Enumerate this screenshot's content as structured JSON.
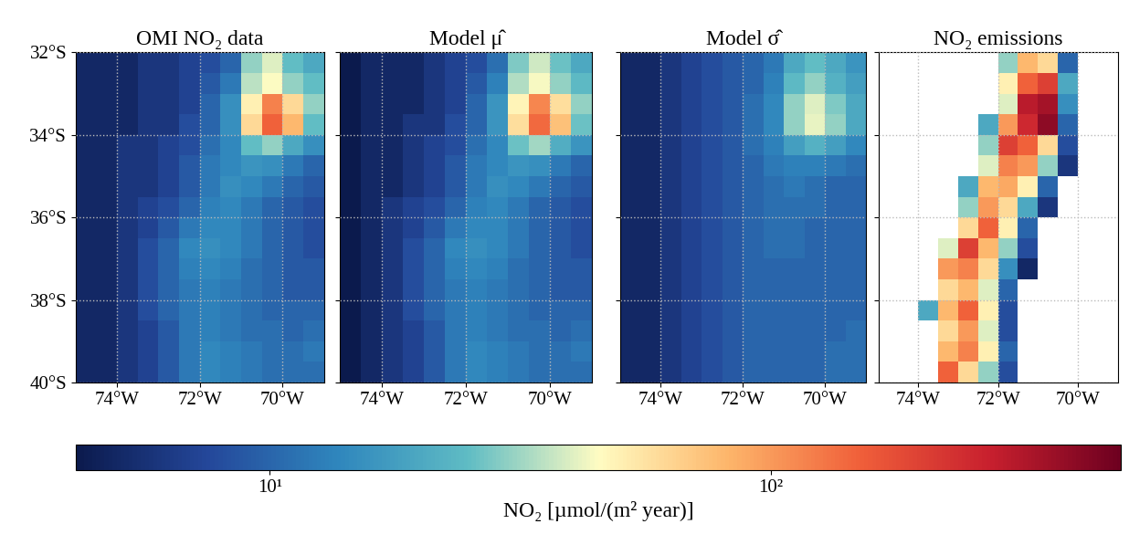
{
  "chart_data": [
    {
      "type": "heatmap",
      "title": "OMI NO₂ data",
      "x": [
        -75,
        -74.5,
        -74,
        -73.5,
        -73,
        -72.5,
        -72,
        -71.5,
        -71,
        -70.5,
        -70,
        -69.5,
        -69
      ],
      "y": [
        -32,
        -32.5,
        -33,
        -33.5,
        -34,
        -34.5,
        -35,
        -35.5,
        -36,
        -36.5,
        -37,
        -37.5,
        -38,
        -38.5,
        -39,
        -39.5,
        -40
      ],
      "cells": [
        [
          5,
          5,
          5,
          6,
          6,
          7,
          8,
          10,
          30,
          40,
          25,
          20
        ],
        [
          5,
          5,
          5,
          6,
          6,
          7,
          9,
          12,
          35,
          45,
          30,
          25
        ],
        [
          5,
          5,
          5,
          6,
          6,
          7,
          10,
          15,
          50,
          120,
          60,
          30
        ],
        [
          5,
          5,
          5,
          6,
          6,
          8,
          10,
          15,
          60,
          150,
          80,
          25
        ],
        [
          5,
          5,
          6,
          6,
          7,
          8,
          11,
          14,
          25,
          30,
          20,
          15
        ],
        [
          5,
          5,
          6,
          6,
          7,
          9,
          12,
          14,
          16,
          15,
          12,
          10
        ],
        [
          5,
          5,
          6,
          6,
          7,
          9,
          12,
          15,
          14,
          12,
          10,
          9
        ],
        [
          5,
          5,
          6,
          7,
          8,
          10,
          13,
          14,
          12,
          10,
          9,
          8
        ],
        [
          5,
          5,
          6,
          7,
          9,
          12,
          14,
          14,
          12,
          10,
          9,
          8
        ],
        [
          5,
          5,
          6,
          8,
          10,
          14,
          15,
          14,
          12,
          10,
          9,
          8
        ],
        [
          5,
          5,
          6,
          8,
          10,
          13,
          14,
          13,
          11,
          10,
          9,
          9
        ],
        [
          5,
          5,
          6,
          8,
          10,
          12,
          13,
          12,
          11,
          10,
          9,
          9
        ],
        [
          5,
          5,
          6,
          8,
          10,
          12,
          13,
          12,
          11,
          10,
          10,
          10
        ],
        [
          5,
          5,
          6,
          7,
          9,
          12,
          13,
          12,
          11,
          11,
          10,
          11
        ],
        [
          5,
          5,
          6,
          7,
          9,
          12,
          14,
          13,
          12,
          11,
          11,
          12
        ],
        [
          5,
          5,
          6,
          7,
          9,
          12,
          14,
          13,
          12,
          11,
          11,
          11
        ]
      ],
      "xlim": [
        -75,
        -69
      ],
      "ylim": [
        -40,
        -32
      ],
      "xticks": [
        {
          "value": -74,
          "label": "74°W"
        },
        {
          "value": -72,
          "label": "72°W"
        },
        {
          "value": -70,
          "label": "70°W"
        }
      ],
      "yticks": [
        {
          "value": -32,
          "label": "32°S"
        },
        {
          "value": -34,
          "label": "34°S"
        },
        {
          "value": -36,
          "label": "36°S"
        },
        {
          "value": -38,
          "label": "38°S"
        },
        {
          "value": -40,
          "label": "40°S"
        }
      ],
      "grid": true
    },
    {
      "type": "heatmap",
      "title": "Model μ̂",
      "x": [
        -75,
        -74.5,
        -74,
        -73.5,
        -73,
        -72.5,
        -72,
        -71.5,
        -71,
        -70.5,
        -70,
        -69.5,
        -69
      ],
      "y": [
        -32,
        -32.5,
        -33,
        -33.5,
        -34,
        -34.5,
        -35,
        -35.5,
        -36,
        -36.5,
        -37,
        -37.5,
        -38,
        -38.5,
        -39,
        -39.5,
        -40
      ],
      "cells": [
        [
          4,
          5,
          5,
          5,
          6,
          7,
          8,
          11,
          28,
          38,
          26,
          20
        ],
        [
          4,
          5,
          5,
          5,
          6,
          7,
          9,
          13,
          34,
          44,
          30,
          24
        ],
        [
          4,
          5,
          5,
          5,
          6,
          7,
          10,
          16,
          48,
          115,
          58,
          30
        ],
        [
          4,
          5,
          5,
          6,
          6,
          8,
          10,
          16,
          58,
          140,
          75,
          26
        ],
        [
          4,
          5,
          5,
          6,
          7,
          8,
          11,
          14,
          26,
          32,
          21,
          16
        ],
        [
          4,
          5,
          5,
          6,
          7,
          9,
          12,
          14,
          16,
          15,
          12,
          10
        ],
        [
          4,
          5,
          5,
          6,
          7,
          9,
          12,
          15,
          14,
          12,
          10,
          9
        ],
        [
          4,
          5,
          6,
          7,
          8,
          10,
          13,
          14,
          12,
          10,
          9,
          8
        ],
        [
          4,
          5,
          6,
          7,
          9,
          12,
          14,
          14,
          12,
          10,
          9,
          8
        ],
        [
          4,
          5,
          6,
          8,
          10,
          14,
          15,
          14,
          12,
          10,
          9,
          8
        ],
        [
          4,
          5,
          6,
          8,
          10,
          13,
          14,
          13,
          11,
          10,
          9,
          9
        ],
        [
          4,
          5,
          6,
          8,
          10,
          12,
          13,
          12,
          11,
          10,
          9,
          9
        ],
        [
          4,
          5,
          6,
          8,
          10,
          12,
          13,
          12,
          11,
          10,
          10,
          10
        ],
        [
          4,
          5,
          6,
          7,
          9,
          12,
          13,
          12,
          11,
          11,
          10,
          11
        ],
        [
          4,
          5,
          6,
          7,
          9,
          12,
          14,
          13,
          12,
          11,
          11,
          12
        ],
        [
          4,
          5,
          6,
          7,
          9,
          12,
          14,
          13,
          12,
          11,
          11,
          11
        ]
      ],
      "xlim": [
        -75,
        -69
      ],
      "ylim": [
        -40,
        -32
      ],
      "xticks": [
        {
          "value": -74,
          "label": "74°W"
        },
        {
          "value": -72,
          "label": "72°W"
        },
        {
          "value": -70,
          "label": "70°W"
        }
      ],
      "yticks": [
        -32,
        -34,
        -36,
        -38,
        -40
      ],
      "tick_labels": "x",
      "grid": true
    },
    {
      "type": "heatmap",
      "title": "Model σ̂",
      "x": [
        -75,
        -74.5,
        -74,
        -73.5,
        -73,
        -72.5,
        -72,
        -71.5,
        -71,
        -70.5,
        -70,
        -69.5,
        -69
      ],
      "y": [
        -32,
        -32.5,
        -33,
        -33.5,
        -34,
        -34.5,
        -35,
        -35.5,
        -36,
        -36.5,
        -37,
        -37.5,
        -38,
        -38.5,
        -39,
        -39.5,
        -40
      ],
      "cells": [
        [
          5,
          5,
          6,
          7,
          8,
          9,
          10,
          12,
          20,
          25,
          20,
          16
        ],
        [
          5,
          5,
          6,
          7,
          8,
          9,
          10,
          13,
          24,
          30,
          22,
          18
        ],
        [
          5,
          5,
          6,
          7,
          8,
          9,
          11,
          14,
          30,
          40,
          28,
          20
        ],
        [
          5,
          5,
          6,
          7,
          8,
          9,
          11,
          14,
          30,
          42,
          30,
          20
        ],
        [
          5,
          5,
          6,
          7,
          8,
          9,
          11,
          13,
          18,
          22,
          18,
          14
        ],
        [
          5,
          5,
          6,
          7,
          8,
          9,
          10,
          12,
          13,
          13,
          12,
          11
        ],
        [
          5,
          5,
          6,
          7,
          8,
          9,
          10,
          11,
          12,
          11,
          10,
          10
        ],
        [
          5,
          5,
          6,
          7,
          8,
          9,
          10,
          11,
          11,
          11,
          10,
          10
        ],
        [
          5,
          5,
          6,
          7,
          8,
          9,
          10,
          11,
          11,
          10,
          10,
          10
        ],
        [
          5,
          5,
          6,
          7,
          8,
          9,
          10,
          11,
          11,
          10,
          10,
          10
        ],
        [
          5,
          5,
          6,
          7,
          8,
          9,
          10,
          10,
          10,
          10,
          10,
          10
        ],
        [
          5,
          5,
          6,
          7,
          8,
          9,
          10,
          10,
          10,
          10,
          10,
          10
        ],
        [
          5,
          5,
          6,
          7,
          8,
          9,
          10,
          10,
          10,
          10,
          10,
          10
        ],
        [
          5,
          5,
          6,
          7,
          8,
          9,
          10,
          10,
          10,
          10,
          10,
          11
        ],
        [
          5,
          5,
          6,
          7,
          8,
          9,
          10,
          10,
          10,
          10,
          11,
          11
        ],
        [
          5,
          5,
          6,
          7,
          8,
          9,
          10,
          10,
          10,
          10,
          11,
          11
        ]
      ],
      "xlim": [
        -75,
        -69
      ],
      "ylim": [
        -40,
        -32
      ],
      "xticks": [
        {
          "value": -74,
          "label": "74°W"
        },
        {
          "value": -72,
          "label": "72°W"
        },
        {
          "value": -70,
          "label": "70°W"
        }
      ],
      "yticks": [
        -32,
        -34,
        -36,
        -38,
        -40
      ],
      "tick_labels": "x",
      "grid": true
    },
    {
      "type": "heatmap",
      "title": "NO₂ emissions",
      "x": [
        -75,
        -74.5,
        -74,
        -73.5,
        -73,
        -72.5,
        -72,
        -71.5,
        -71,
        -70.5,
        -70,
        -69.5,
        -69
      ],
      "y": [
        -32,
        -32.5,
        -33,
        -33.5,
        -34,
        -34.5,
        -35,
        -35.5,
        -36,
        -36.5,
        -37,
        -37.5,
        -38,
        -38.5,
        -39,
        -39.5,
        -40
      ],
      "cells": [
        [
          null,
          null,
          null,
          null,
          null,
          null,
          30,
          80,
          60,
          10,
          null,
          null
        ],
        [
          null,
          null,
          null,
          null,
          null,
          null,
          50,
          150,
          200,
          20,
          null,
          null
        ],
        [
          null,
          null,
          null,
          null,
          null,
          null,
          40,
          300,
          350,
          15,
          null,
          null
        ],
        [
          null,
          null,
          null,
          null,
          null,
          20,
          100,
          250,
          400,
          10,
          null,
          null
        ],
        [
          null,
          null,
          null,
          null,
          null,
          30,
          200,
          150,
          60,
          8,
          null,
          null
        ],
        [
          null,
          null,
          null,
          null,
          null,
          40,
          120,
          100,
          30,
          6,
          null,
          null
        ],
        [
          null,
          null,
          null,
          null,
          20,
          80,
          90,
          50,
          10,
          null,
          null,
          null
        ],
        [
          null,
          null,
          null,
          null,
          30,
          100,
          60,
          20,
          6,
          null,
          null,
          null
        ],
        [
          null,
          null,
          null,
          null,
          60,
          150,
          50,
          10,
          null,
          null,
          null,
          null
        ],
        [
          null,
          null,
          null,
          40,
          200,
          80,
          30,
          8,
          null,
          null,
          null,
          null
        ],
        [
          null,
          null,
          null,
          100,
          120,
          60,
          15,
          5,
          null,
          null,
          null,
          null
        ],
        [
          null,
          null,
          null,
          60,
          80,
          40,
          10,
          null,
          null,
          null,
          null,
          null
        ],
        [
          null,
          null,
          20,
          80,
          150,
          50,
          8,
          null,
          null,
          null,
          null,
          null
        ],
        [
          null,
          null,
          null,
          60,
          100,
          40,
          8,
          null,
          null,
          null,
          null,
          null
        ],
        [
          null,
          null,
          null,
          80,
          120,
          50,
          10,
          null,
          null,
          null,
          null,
          null
        ],
        [
          null,
          null,
          null,
          150,
          60,
          30,
          8,
          null,
          null,
          null,
          null,
          null
        ]
      ],
      "xlim": [
        -75,
        -69
      ],
      "ylim": [
        -40,
        -32
      ],
      "xticks": [
        {
          "value": -74,
          "label": "74°W"
        },
        {
          "value": -72,
          "label": "72°W"
        },
        {
          "value": -70,
          "label": "70°W"
        }
      ],
      "yticks": [
        -32,
        -34,
        -36,
        -38,
        -40
      ],
      "tick_labels": "x",
      "grid": true
    }
  ],
  "colorbar": {
    "label": "NO₂ [µmol/(m² year)]",
    "range": [
      4.1,
      500
    ],
    "log": true,
    "ticks": [
      {
        "value": 10,
        "label": "10¹"
      },
      {
        "value": 100,
        "label": "10²"
      }
    ]
  }
}
